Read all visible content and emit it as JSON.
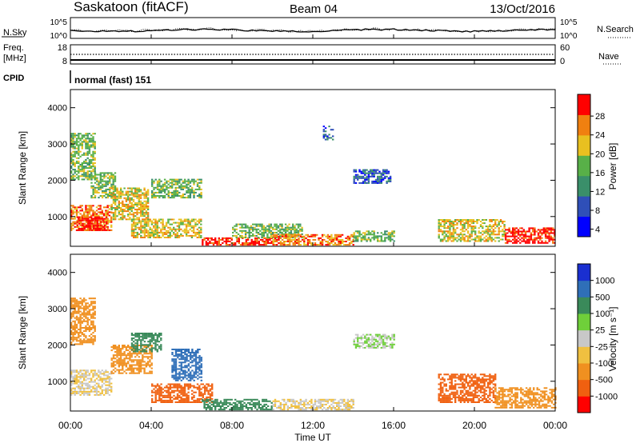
{
  "header": {
    "site": "Saskatoon (fitACF)",
    "beam": "Beam 04",
    "date": "13/Oct/2016"
  },
  "top_panel": {
    "left_label": "N.Sky",
    "left_ticks": [
      "10^5",
      "10^0"
    ],
    "right_ticks": [
      "10^5",
      "10^0"
    ],
    "right_label": "N.Search"
  },
  "freq_panel": {
    "left_label_1": "Freq.",
    "left_label_2": "[MHz]",
    "left_ticks": [
      "18",
      "8"
    ],
    "right_ticks": [
      "60",
      "0"
    ],
    "right_label": "Nave"
  },
  "cpid": {
    "label": "CPID",
    "value": "normal (fast) 151"
  },
  "x_axis": {
    "label": "Time UT",
    "ticks": [
      "00:00",
      "04:00",
      "08:00",
      "12:00",
      "16:00",
      "20:00",
      "00:00"
    ]
  },
  "power_panel": {
    "ylabel": "Slant Range [km]",
    "yticks": [
      "4000",
      "3000",
      "2000",
      "1000"
    ],
    "colorbar_label": "Power [dB]",
    "colorbar_ticks": [
      "28",
      "24",
      "20",
      "16",
      "12",
      "8",
      "4"
    ],
    "colors": [
      "#0000ff",
      "#2f4fb8",
      "#3a8f6a",
      "#58b048",
      "#e8c020",
      "#f08010",
      "#ff0000"
    ]
  },
  "velocity_panel": {
    "ylabel": "Slant Range [km]",
    "yticks": [
      "4000",
      "3000",
      "2000",
      "1000"
    ],
    "colorbar_label": "Velocity [m s⁻¹]",
    "colorbar_ticks": [
      "1000",
      "500",
      "100",
      "25",
      "-25",
      "-100",
      "-500",
      "-1000"
    ],
    "colors": [
      "#1a2fd0",
      "#2f6fb8",
      "#3a8a5a",
      "#6fcf3a",
      "#c8c8c8",
      "#f0c040",
      "#f09020",
      "#f06010",
      "#ff0000"
    ]
  },
  "chart_data": {
    "type": "heatmap",
    "x_range_hours": [
      0,
      24
    ],
    "y_range_km": [
      180,
      4500
    ],
    "power_regions": [
      {
        "t": [
          0.0,
          1.2
        ],
        "r": [
          2000,
          3300
        ],
        "db": 16
      },
      {
        "t": [
          0.0,
          2.0
        ],
        "r": [
          600,
          1300
        ],
        "db": 24
      },
      {
        "t": [
          0.3,
          1.8
        ],
        "r": [
          600,
          1000
        ],
        "db": 28
      },
      {
        "t": [
          1.0,
          2.2
        ],
        "r": [
          1500,
          2200
        ],
        "db": 16
      },
      {
        "t": [
          2.0,
          3.8
        ],
        "r": [
          900,
          1800
        ],
        "db": 20
      },
      {
        "t": [
          3.0,
          6.5
        ],
        "r": [
          400,
          900
        ],
        "db": 20
      },
      {
        "t": [
          4.0,
          6.5
        ],
        "r": [
          1500,
          2000
        ],
        "db": 16
      },
      {
        "t": [
          6.5,
          10.0
        ],
        "r": [
          200,
          400
        ],
        "db": 28
      },
      {
        "t": [
          8.0,
          11.5
        ],
        "r": [
          400,
          800
        ],
        "db": 16
      },
      {
        "t": [
          10.0,
          14.0
        ],
        "r": [
          200,
          500
        ],
        "db": 24
      },
      {
        "t": [
          14.0,
          16.0
        ],
        "r": [
          300,
          600
        ],
        "db": 16
      },
      {
        "t": [
          14.0,
          15.8
        ],
        "r": [
          1900,
          2300
        ],
        "db": 8
      },
      {
        "t": [
          12.5,
          13.0
        ],
        "r": [
          3100,
          3500
        ],
        "db": 8
      },
      {
        "t": [
          18.2,
          21.5
        ],
        "r": [
          300,
          900
        ],
        "db": 20
      },
      {
        "t": [
          21.5,
          24.0
        ],
        "r": [
          250,
          700
        ],
        "db": 28
      }
    ],
    "velocity_regions": [
      {
        "t": [
          0.0,
          1.2
        ],
        "r": [
          2000,
          3300
        ],
        "ms": -100
      },
      {
        "t": [
          0.0,
          2.0
        ],
        "r": [
          600,
          1300
        ],
        "ms": -25
      },
      {
        "t": [
          2.0,
          4.0
        ],
        "r": [
          1200,
          2000
        ],
        "ms": -100
      },
      {
        "t": [
          3.0,
          4.5
        ],
        "r": [
          1800,
          2300
        ],
        "ms": 100
      },
      {
        "t": [
          5.0,
          6.5
        ],
        "r": [
          1000,
          1900
        ],
        "ms": 500
      },
      {
        "t": [
          4.0,
          7.0
        ],
        "r": [
          400,
          900
        ],
        "ms": -500
      },
      {
        "t": [
          6.5,
          10.0
        ],
        "r": [
          200,
          500
        ],
        "ms": 100
      },
      {
        "t": [
          10.0,
          14.0
        ],
        "r": [
          200,
          500
        ],
        "ms": -25
      },
      {
        "t": [
          14.0,
          16.0
        ],
        "r": [
          1900,
          2300
        ],
        "ms": 25
      },
      {
        "t": [
          18.2,
          21.0
        ],
        "r": [
          400,
          1200
        ],
        "ms": -500
      },
      {
        "t": [
          21.0,
          24.0
        ],
        "r": [
          250,
          800
        ],
        "ms": -100
      }
    ]
  }
}
